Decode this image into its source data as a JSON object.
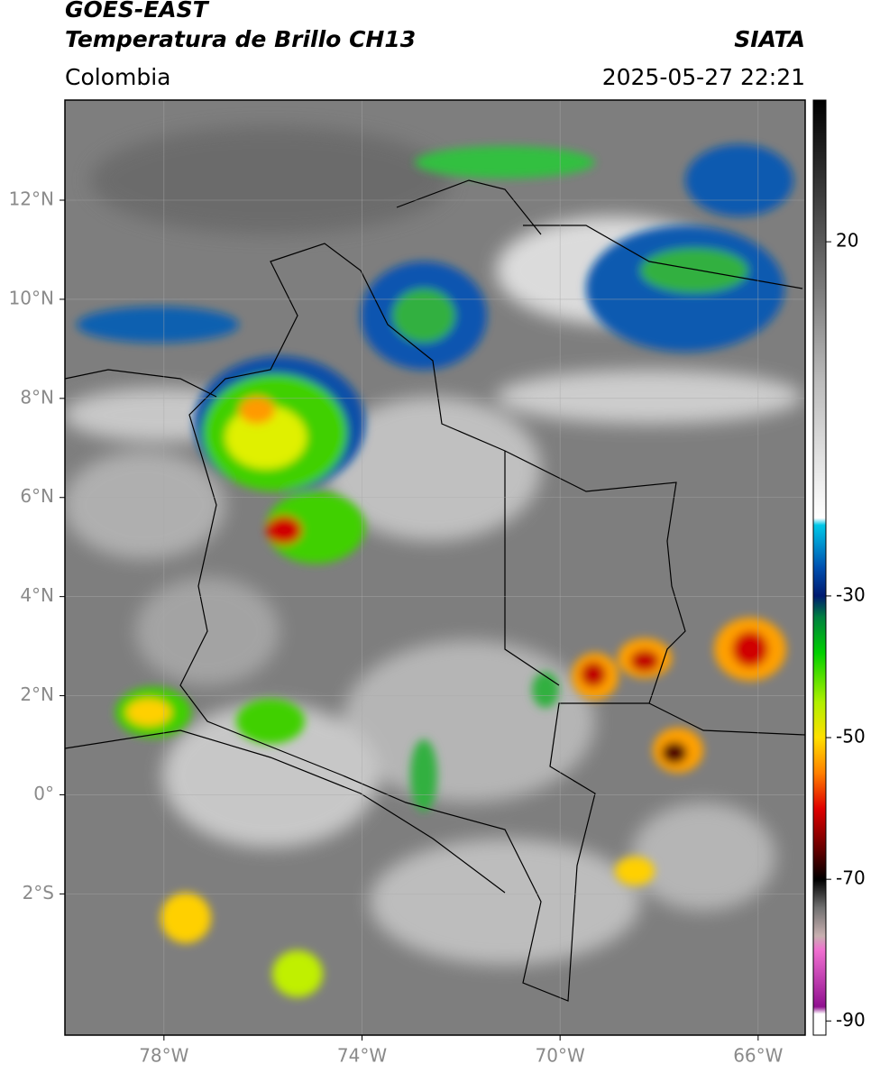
{
  "header": {
    "title": "GOES-EAST",
    "subtitle": "Temperatura de Brillo CH13",
    "source": "SIATA",
    "region": "Colombia",
    "datetime": "2025-05-27 22:21"
  },
  "map": {
    "xlim": [
      -80,
      -65.05
    ],
    "ylim": [
      -4.85,
      14.02
    ],
    "grid": true,
    "xticks": [
      {
        "value": -78,
        "label": "78°W"
      },
      {
        "value": -74,
        "label": "74°W"
      },
      {
        "value": -70,
        "label": "70°W"
      },
      {
        "value": -66,
        "label": "66°W"
      }
    ],
    "yticks": [
      {
        "value": 12,
        "label": "12°N"
      },
      {
        "value": 10,
        "label": "10°N"
      },
      {
        "value": 8,
        "label": "8°N"
      },
      {
        "value": 6,
        "label": "6°N"
      },
      {
        "value": 4,
        "label": "4°N"
      },
      {
        "value": 2,
        "label": "2°N"
      },
      {
        "value": 0,
        "label": "0°"
      },
      {
        "value": -2,
        "label": "2°S"
      }
    ]
  },
  "colorbar": {
    "lim": [
      -92,
      40
    ],
    "ticks": [
      20,
      -30,
      -50,
      -70,
      -90
    ],
    "colormap": [
      {
        "value": 40,
        "color": "#000000"
      },
      {
        "value": 20,
        "color": "#5a5a5a"
      },
      {
        "value": 0,
        "color": "#bdbdbd"
      },
      {
        "value": -19,
        "color": "#ffffff"
      },
      {
        "value": -20,
        "color": "#00c8e8"
      },
      {
        "value": -26,
        "color": "#0050b0"
      },
      {
        "value": -30,
        "color": "#001a70"
      },
      {
        "value": -33,
        "color": "#008040"
      },
      {
        "value": -38,
        "color": "#00d000"
      },
      {
        "value": -45,
        "color": "#b0f000"
      },
      {
        "value": -50,
        "color": "#ffe000"
      },
      {
        "value": -55,
        "color": "#ff8000"
      },
      {
        "value": -60,
        "color": "#e00000"
      },
      {
        "value": -66,
        "color": "#600000"
      },
      {
        "value": -70,
        "color": "#000000"
      },
      {
        "value": -74,
        "color": "#707070"
      },
      {
        "value": -78,
        "color": "#c8b0b0"
      },
      {
        "value": -80,
        "color": "#f070d0"
      },
      {
        "value": -88,
        "color": "#901090"
      },
      {
        "value": -89,
        "color": "#ffffff"
      },
      {
        "value": -92,
        "color": "#ffffff"
      }
    ]
  }
}
